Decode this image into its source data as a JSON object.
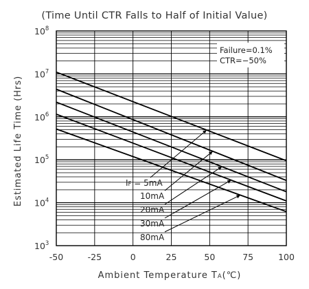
{
  "chart_data": {
    "type": "line",
    "title": "(Time Until CTR Falls to Half of Initial Value)",
    "xlabel": "Ambient Temperature",
    "xlabel_symbol_main": "T",
    "xlabel_symbol_sub": "A",
    "xlabel_unit": "(℃)",
    "ylabel": "Estimated Life Time (Hrs)",
    "x_scale": "linear",
    "y_scale": "log",
    "xlim": [
      -50,
      100
    ],
    "ylim": [
      1000,
      100000000
    ],
    "x_ticks": [
      "-50",
      "-25",
      "0",
      "25",
      "50",
      "75",
      "100"
    ],
    "y_ticks": [
      {
        "base": "10",
        "exp": "3"
      },
      {
        "base": "10",
        "exp": "4"
      },
      {
        "base": "10",
        "exp": "5"
      },
      {
        "base": "10",
        "exp": "6"
      },
      {
        "base": "10",
        "exp": "7"
      },
      {
        "base": "10",
        "exp": "8"
      }
    ],
    "grid": true,
    "annotations": [
      "Failure=0.1%",
      "CTR=−50%"
    ],
    "series": [
      {
        "name": "I F = 5mA",
        "label_main": "I",
        "label_sub": "F",
        "label_rest": " = 5mA",
        "x": [
          -50,
          100
        ],
        "y": [
          11000000,
          95000
        ]
      },
      {
        "name": "10mA",
        "label_main": "10mA",
        "x": [
          -50,
          100
        ],
        "y": [
          4400000,
          33000
        ]
      },
      {
        "name": "20mA",
        "label_main": "20mA",
        "x": [
          -50,
          100
        ],
        "y": [
          2200000,
          18000
        ]
      },
      {
        "name": "30mA",
        "label_main": "30mA",
        "x": [
          -50,
          100
        ],
        "y": [
          1150000,
          11000
        ]
      },
      {
        "name": "80mA",
        "label_main": "80mA",
        "x": [
          -50,
          100
        ],
        "y": [
          520000,
          6200
        ]
      }
    ]
  }
}
